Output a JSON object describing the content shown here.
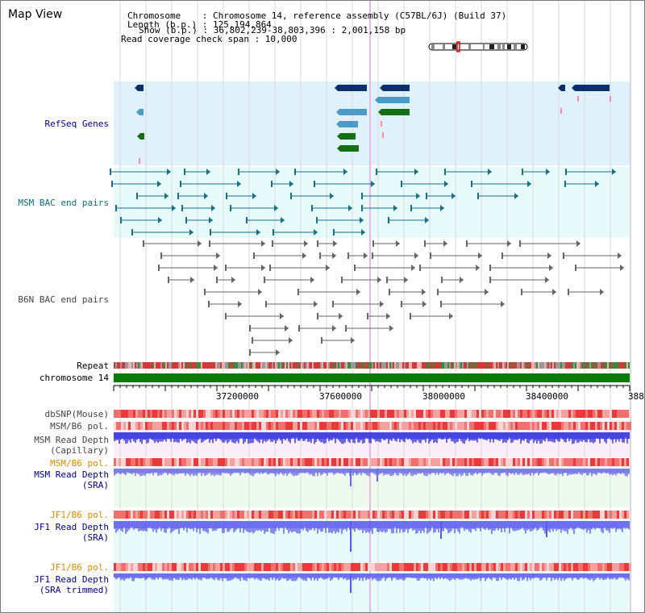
{
  "header": {
    "title": "Map View",
    "info_lines": [
      "Chromosome    : Chromosome 14, reference assembly (C57BL/6J) (Build 37)",
      "Length (b.p.) : 125,194,864",
      "Show (b.p.) : 36,802,239-38,803,396 : 2,001,158 bp",
      "Read coverage check span : 10,000"
    ]
  },
  "tracks": {
    "refseq": "RefSeq Genes",
    "msm_bac": "MSM BAC end pairs",
    "b6n_bac": "B6N BAC end pairs",
    "repeat": "Repeat",
    "chromosome": "chromosome 14"
  },
  "axis": {
    "ticks": [
      "37200000",
      "37600000",
      "38000000",
      "38400000",
      "388"
    ]
  },
  "lower_tracks": {
    "dbsnp": "dbSNP(Mouse)",
    "msm_pol_1": "MSM/B6 pol.",
    "msm_depth_cap_1": "MSM Read Depth",
    "msm_depth_cap_2": "(Capillary)",
    "msm_pol_2": "MSM/B6 pol.",
    "msm_depth_sra_1": "MSM Read Depth",
    "msm_depth_sra_2": "(SRA)",
    "jf1_pol_1": "JF1/B6 pol.",
    "jf1_depth_sra_1": "JF1 Read Depth",
    "jf1_depth_sra_2": "(SRA)",
    "jf1_pol_2": "JF1/B6 pol.",
    "jf1_depth_trim_1": "JF1 Read Depth",
    "jf1_depth_trim_2": "(SRA trimmed)"
  },
  "colors": {
    "refseq_bg": "#dff1fb",
    "bac_bg": "#e8fbfb",
    "gene_navy": "#0b2f6e",
    "gene_blue": "#4a9cc7",
    "gene_green": "#146e14",
    "bac_teal": "#17708a",
    "bac_grey": "#666666",
    "chromosome_green": "#0b7a0b",
    "depth_blue": "#2b2bdd",
    "pol_red": "#ee4444",
    "label_navy": "#00008b",
    "label_orange": "#e08a00"
  }
}
